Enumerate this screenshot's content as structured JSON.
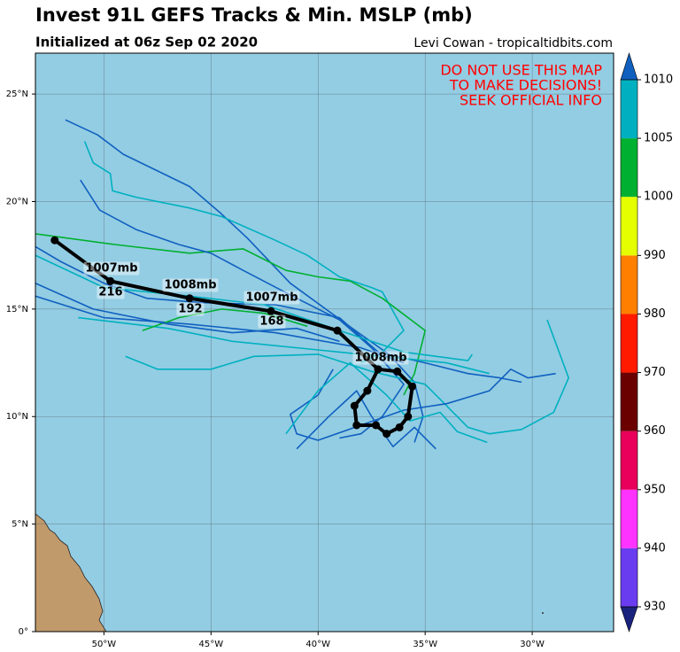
{
  "header": {
    "title": "Invest 91L GEFS Tracks & Min. MSLP (mb)",
    "subtitle": "Initialized at 06z Sep 02 2020",
    "credit": "Levi Cowan - tropicaltidbits.com"
  },
  "warning": [
    "DO NOT USE THIS MAP",
    "TO MAKE DECISIONS!",
    "SEEK OFFICIAL INFO"
  ],
  "map": {
    "xlim": [
      -53.2,
      -26.2
    ],
    "ylim": [
      0,
      26.9
    ],
    "xticks": [
      {
        "value": -50,
        "label": "50°W"
      },
      {
        "value": -45,
        "label": "45°W"
      },
      {
        "value": -40,
        "label": "40°W"
      },
      {
        "value": -35,
        "label": "35°W"
      },
      {
        "value": -30,
        "label": "30°W"
      }
    ],
    "yticks": [
      {
        "value": 0,
        "label": "0°"
      },
      {
        "value": 5,
        "label": "5°N"
      },
      {
        "value": 10,
        "label": "10°N"
      },
      {
        "value": 15,
        "label": "15°N"
      },
      {
        "value": 20,
        "label": "20°N"
      },
      {
        "value": 25,
        "label": "25°N"
      }
    ]
  },
  "colorbar": {
    "ticks": [
      930,
      940,
      950,
      960,
      970,
      980,
      990,
      1000,
      1005,
      1010
    ],
    "colors": [
      "#6a3cf0",
      "#ff33ff",
      "#e8005a",
      "#6b0000",
      "#ff1a00",
      "#ff7f00",
      "#e5ff00",
      "#00b030",
      "#00b0c0"
    ],
    "under_color": "#1a237e",
    "over_color": "#1060c0"
  },
  "tracks": [
    {
      "color": "#1060c0",
      "lon": [
        -51.8,
        -50.3,
        -49.1,
        -46,
        -44.6,
        -43.3,
        -41.3,
        -38.4,
        -36.7,
        -35.5,
        -35.1,
        -35.5
      ],
      "lat": [
        23.8,
        23.1,
        22.2,
        20.7,
        19.5,
        18.3,
        16.2,
        14.1,
        12.9,
        11.6,
        10,
        8.8
      ]
    },
    {
      "color": "#00b0c0",
      "lon": [
        -50.9,
        -50.5,
        -49.7,
        -49.6,
        -48.5,
        -46,
        -44.5,
        -42,
        -40.5,
        -39,
        -37.5,
        -37,
        -36,
        -37,
        -38
      ],
      "lat": [
        22.8,
        21.8,
        21.3,
        20.5,
        20.2,
        19.7,
        19.3,
        18.2,
        17.5,
        16.5,
        16,
        15.8,
        14,
        13,
        12.5
      ]
    },
    {
      "color": "#00b030",
      "lon": [
        -53.2,
        -49.5,
        -46,
        -43.5,
        -41.5,
        -40,
        -38.5,
        -37,
        -35,
        -35.5,
        -36
      ],
      "lat": [
        18.5,
        18,
        17.6,
        17.8,
        16.8,
        16.5,
        16.3,
        15.5,
        14,
        12,
        11
      ]
    },
    {
      "color": "#1060c0",
      "lon": [
        -51.1,
        -50.2,
        -48.5,
        -46.5,
        -45,
        -43.5,
        -41,
        -39,
        -37.5,
        -36,
        -37,
        -38,
        -39
      ],
      "lat": [
        21,
        19.6,
        18.7,
        18,
        17.6,
        16.8,
        15.5,
        14.5,
        13.2,
        11.5,
        10,
        9.2,
        9
      ]
    },
    {
      "color": "#1060c0",
      "lon": [
        -53.2,
        -52,
        -50,
        -48,
        -45.5,
        -42,
        -39,
        -37.2,
        -35,
        -33,
        -31.5,
        -30.5
      ],
      "lat": [
        17.9,
        17.2,
        16.2,
        15.5,
        15.3,
        15.2,
        14.6,
        13,
        12.5,
        12,
        11.8,
        11.6
      ]
    },
    {
      "color": "#00b0c0",
      "lon": [
        -53.2,
        -50,
        -46,
        -42.5,
        -39,
        -36,
        -33,
        -32.8
      ],
      "lat": [
        17.5,
        16,
        15.6,
        15.2,
        14,
        13,
        12.6,
        12.9
      ]
    },
    {
      "color": "#00b0c0",
      "lon": [
        -51.2,
        -47,
        -44,
        -40,
        -37,
        -34,
        -32
      ],
      "lat": [
        14.6,
        14.1,
        13.5,
        13.1,
        12.8,
        12.5,
        12
      ]
    },
    {
      "color": "#1060c0",
      "lon": [
        -53.2,
        -50,
        -46,
        -42,
        -38,
        -36
      ],
      "lat": [
        15.6,
        14.6,
        14.3,
        13.9,
        13.2,
        12.5
      ]
    },
    {
      "color": "#00b0c0",
      "lon": [
        -49,
        -47.5,
        -45,
        -43,
        -40,
        -37.5,
        -35,
        -34,
        -33,
        -32,
        -30.5,
        -29,
        -28.3,
        -29.3
      ],
      "lat": [
        12.8,
        12.2,
        12.2,
        12.8,
        12.9,
        12.1,
        11.5,
        10.5,
        9.5,
        9.2,
        9.4,
        10.2,
        11.8,
        14.5
      ]
    },
    {
      "color": "#1060c0",
      "lon": [
        -39.3,
        -40,
        -41.3,
        -41,
        -40,
        -38,
        -36,
        -34,
        -32,
        -31,
        -30.2,
        -28.9
      ],
      "lat": [
        12.2,
        11,
        10.1,
        9.2,
        8.9,
        9.6,
        10.3,
        10.6,
        11.2,
        12.2,
        11.8,
        12
      ]
    },
    {
      "color": "#00b0c0",
      "lon": [
        -41.5,
        -40,
        -38.5,
        -36.8,
        -35.7,
        -34.3,
        -33.5,
        -32.1
      ],
      "lat": [
        9.2,
        11.2,
        12.5,
        11,
        9.8,
        10.2,
        9.3,
        8.8
      ]
    },
    {
      "color": "#1060c0",
      "lon": [
        -41,
        -39.5,
        -38.2,
        -37.5,
        -36.5,
        -35.5,
        -34.5
      ],
      "lat": [
        8.5,
        10,
        11.2,
        10,
        8.6,
        9.5,
        8.5
      ]
    },
    {
      "color": "#00b030",
      "lon": [
        -48.2,
        -46.5,
        -44.5,
        -42.5,
        -40.5
      ],
      "lat": [
        14,
        14.6,
        15,
        14.8,
        14.2
      ]
    },
    {
      "color": "#1060c0",
      "lon": [
        -53.2,
        -50.5,
        -47,
        -44,
        -41,
        -39
      ],
      "lat": [
        16.2,
        15,
        14.3,
        13.9,
        14.1,
        13.5
      ]
    }
  ],
  "mean_track": {
    "color": "#000000",
    "lon": [
      -37.2,
      -36.3,
      -35.6,
      -35.8,
      -36.2,
      -36.8,
      -37.3,
      -38.2,
      -38.3,
      -37.7,
      -37.2,
      -39.1,
      -42.2,
      -46,
      -49.7,
      -52.3
    ],
    "lat": [
      12.2,
      12.1,
      11.4,
      10,
      9.5,
      9.2,
      9.6,
      9.6,
      10.5,
      11.2,
      12.2,
      14,
      14.9,
      15.5,
      16.3,
      18.2
    ]
  },
  "mean_labels": [
    "1007mb",
    "216",
    "1008mb",
    "192",
    "1007mb",
    "168",
    "1008mb"
  ]
}
